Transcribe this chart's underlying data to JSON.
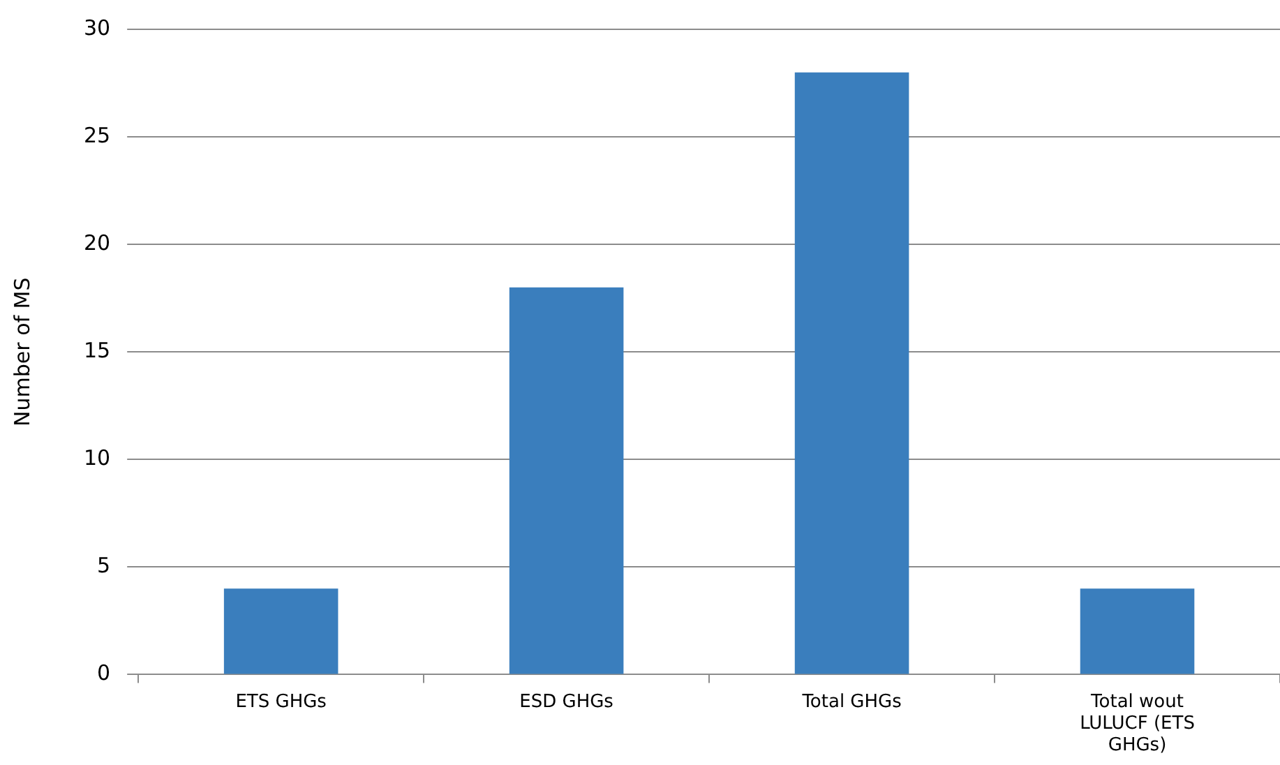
{
  "chart_data": {
    "type": "bar",
    "ylabel": "Number of MS",
    "categories": [
      "ETS GHGs",
      "ESD GHGs",
      "Total GHGs",
      "Total wout LULUCF (ETS GHGs)"
    ],
    "values": [
      4,
      18,
      28,
      4
    ],
    "color": "#3a7ebd",
    "ylim": [
      0,
      30
    ],
    "yticks": [
      0,
      5,
      10,
      15,
      20,
      25,
      30
    ],
    "grid": "y",
    "legend": false
  }
}
